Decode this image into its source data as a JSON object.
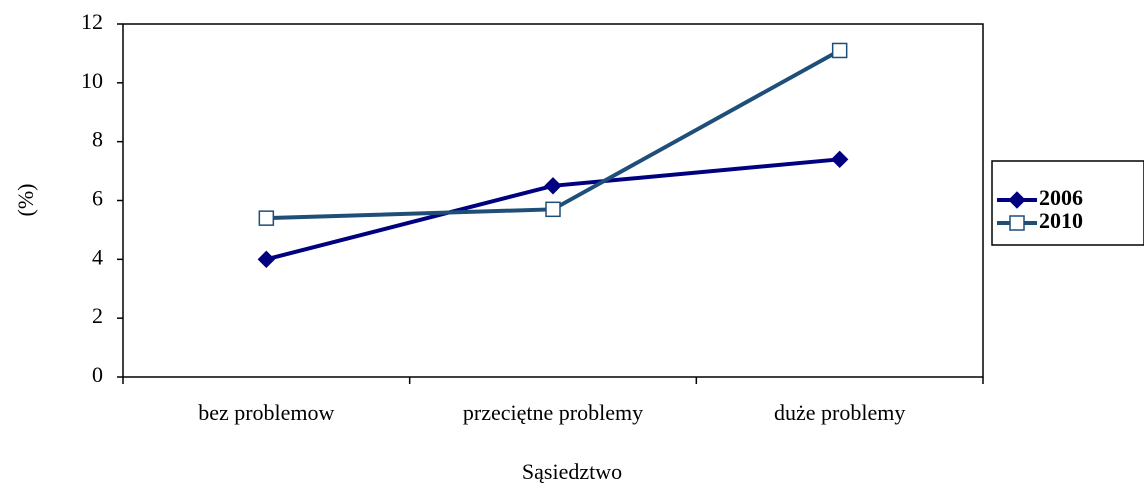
{
  "chart_data": {
    "type": "line",
    "x_label": "Sąsiedztwo",
    "y_label": "(%)",
    "categories": [
      "bez problemow",
      "przeciętne problemy",
      "duże problemy"
    ],
    "series": [
      {
        "name": "2006",
        "color": "#000080",
        "marker": "diamond",
        "values": [
          4,
          6.5,
          7.4
        ]
      },
      {
        "name": "2010",
        "color": "#1f4e79",
        "marker": "square",
        "values": [
          5.4,
          5.7,
          11.1
        ]
      }
    ],
    "ylim": [
      0,
      12
    ],
    "yticks": [
      0,
      2,
      4,
      6,
      8,
      10,
      12
    ],
    "grid": false,
    "legend": "right"
  }
}
